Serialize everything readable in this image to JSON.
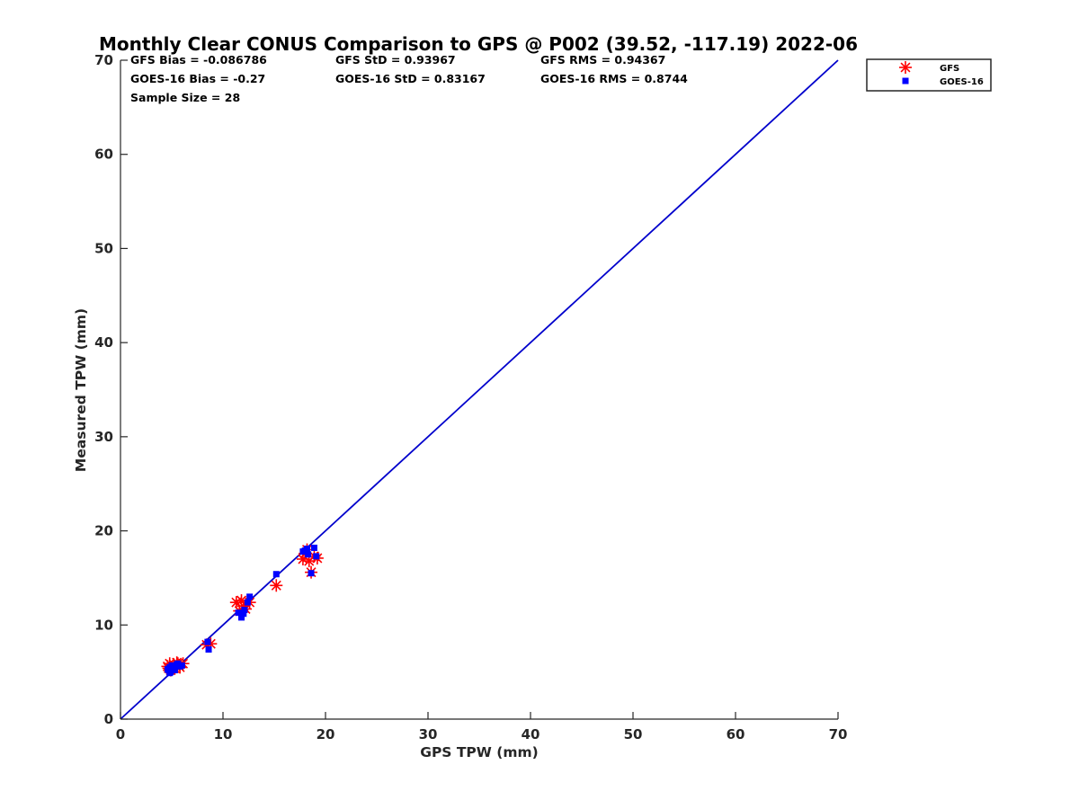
{
  "chart_data": {
    "type": "scatter",
    "title": "Monthly Clear CONUS Comparison to GPS @ P002 (39.52, -117.19) 2022-06",
    "xlabel": "GPS TPW (mm)",
    "ylabel": "Measured TPW (mm)",
    "xlim": [
      0,
      70
    ],
    "ylim": [
      0,
      70
    ],
    "xticks": [
      "0",
      "10",
      "20",
      "30",
      "40",
      "50",
      "60",
      "70"
    ],
    "yticks": [
      "0",
      "10",
      "20",
      "30",
      "40",
      "50",
      "60",
      "70"
    ],
    "grid": false,
    "legend_position": "top-right outside",
    "stats": {
      "gfs_bias": "GFS Bias = -0.086786",
      "gfs_std": "GFS StD = 0.93967",
      "gfs_rms": "GFS RMS = 0.94367",
      "goes_bias": "GOES-16 Bias = -0.27",
      "goes_std": "GOES-16 StD = 0.83167",
      "goes_rms": "GOES-16 RMS = 0.8744",
      "sample_size": "Sample Size = 28"
    },
    "reference_line": {
      "from": [
        0,
        0
      ],
      "to": [
        70,
        70
      ],
      "color": "#0000cc"
    },
    "series": [
      {
        "name": "GFS",
        "marker": "asterisk",
        "color": "#ff0000",
        "points": [
          [
            4.6,
            5.6
          ],
          [
            4.8,
            5.9
          ],
          [
            5.0,
            5.5
          ],
          [
            5.2,
            5.8
          ],
          [
            5.4,
            5.6
          ],
          [
            5.6,
            5.9
          ],
          [
            5.8,
            5.5
          ],
          [
            6.1,
            5.9
          ],
          [
            4.9,
            5.2
          ],
          [
            5.3,
            5.4
          ],
          [
            8.4,
            7.9
          ],
          [
            8.8,
            8.0
          ],
          [
            11.3,
            12.4
          ],
          [
            11.8,
            12.6
          ],
          [
            12.2,
            11.7
          ],
          [
            12.6,
            12.4
          ],
          [
            11.6,
            11.5
          ],
          [
            15.2,
            14.2
          ],
          [
            17.8,
            17.0
          ],
          [
            18.2,
            18.0
          ],
          [
            18.6,
            15.6
          ],
          [
            18.9,
            17.3
          ],
          [
            19.2,
            17.1
          ],
          [
            18.4,
            16.8
          ],
          [
            5.5,
            6.0
          ],
          [
            4.7,
            5.4
          ],
          [
            12.0,
            12.0
          ],
          [
            18.0,
            17.6
          ]
        ]
      },
      {
        "name": "GOES-16",
        "marker": "square",
        "color": "#0000ff",
        "points": [
          [
            4.6,
            5.3
          ],
          [
            4.8,
            5.5
          ],
          [
            4.9,
            5.0
          ],
          [
            5.0,
            5.7
          ],
          [
            5.2,
            5.4
          ],
          [
            5.5,
            5.8
          ],
          [
            5.8,
            5.6
          ],
          [
            6.0,
            5.7
          ],
          [
            4.8,
            4.9
          ],
          [
            5.3,
            5.2
          ],
          [
            8.5,
            8.2
          ],
          [
            8.6,
            7.4
          ],
          [
            11.5,
            11.3
          ],
          [
            11.8,
            10.8
          ],
          [
            12.1,
            11.6
          ],
          [
            12.4,
            12.4
          ],
          [
            12.6,
            13.0
          ],
          [
            15.2,
            15.4
          ],
          [
            17.8,
            17.8
          ],
          [
            18.2,
            18.1
          ],
          [
            18.6,
            15.5
          ],
          [
            18.9,
            18.2
          ],
          [
            19.1,
            17.3
          ],
          [
            18.3,
            17.5
          ],
          [
            5.6,
            5.9
          ],
          [
            4.7,
            5.2
          ],
          [
            12.0,
            11.2
          ],
          [
            18.0,
            17.9
          ]
        ]
      }
    ]
  }
}
